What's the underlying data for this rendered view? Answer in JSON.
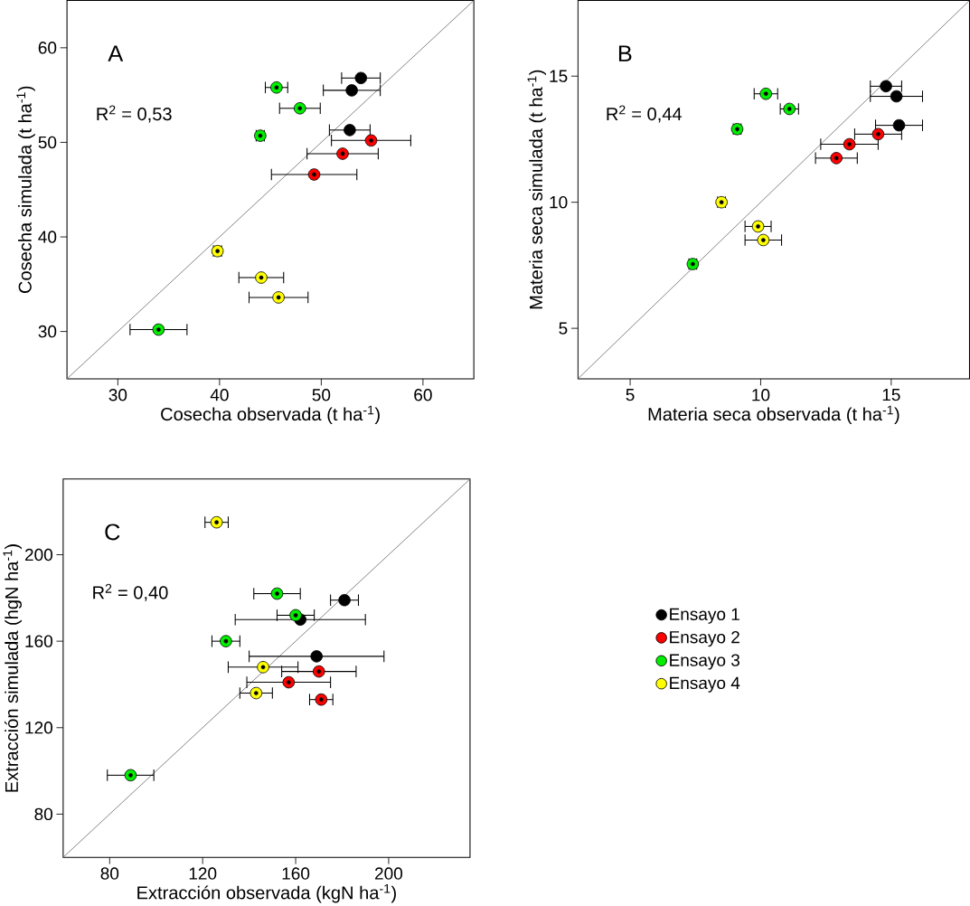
{
  "chart_data": [
    {
      "type": "scatter",
      "xlabel": "Cosecha observada (t ha$^{-1}$)",
      "ylabel": "Cosecha simulada (t ha$^{-1}$)",
      "annotations": [
        "A",
        "R$^{2}$ = 0,53"
      ],
      "xlim": [
        25,
        65
      ],
      "ylim": [
        25,
        65
      ],
      "xticks": [
        30,
        40,
        50,
        60
      ],
      "yticks": [
        30,
        40,
        50,
        60
      ],
      "marker": "circle",
      "grid": false,
      "legend": false,
      "series": [
        {
          "color": "#000000",
          "x": [
            53.9,
            53.0,
            52.8
          ],
          "values": [
            56.8,
            55.5,
            51.3
          ],
          "xerrors": [
            1.9,
            2.8,
            2.0
          ]
        },
        {
          "color": "#ff0000",
          "x": [
            54.9,
            52.1,
            49.3
          ],
          "values": [
            50.2,
            48.8,
            46.6
          ],
          "xerrors": [
            3.9,
            3.5,
            4.2
          ]
        },
        {
          "color": "#00ee00",
          "x": [
            45.6,
            47.9,
            44.0,
            34.0
          ],
          "values": [
            55.8,
            53.6,
            50.7,
            30.2
          ],
          "xerrors": [
            1.1,
            2.0,
            0.4,
            2.8
          ]
        },
        {
          "color": "#ffff00",
          "x": [
            39.8,
            44.1,
            45.8
          ],
          "values": [
            38.5,
            35.7,
            33.6
          ],
          "xerrors": [
            0.4,
            2.2,
            2.9
          ]
        },
        {
          "type": "line",
          "marker": "none",
          "color": "#808080",
          "x": [
            25,
            65
          ],
          "values": [
            25,
            65
          ]
        }
      ]
    },
    {
      "type": "scatter",
      "xlabel": "Materia seca observada (t ha$^{-1}$)",
      "ylabel": "Materia seca simulada (t ha$^{-1}$)",
      "annotations": [
        "B",
        "R$^{2}$ = 0,44"
      ],
      "xlim": [
        3,
        18
      ],
      "ylim": [
        3,
        18
      ],
      "xticks": [
        5,
        10,
        15
      ],
      "yticks": [
        5,
        10,
        15
      ],
      "marker": "circle",
      "grid": false,
      "legend": false,
      "series": [
        {
          "color": "#000000",
          "x": [
            14.8,
            15.2,
            15.3
          ],
          "values": [
            14.6,
            14.2,
            13.05
          ],
          "xerrors": [
            0.6,
            1.0,
            0.9
          ]
        },
        {
          "color": "#ff0000",
          "x": [
            14.5,
            13.4,
            12.9
          ],
          "values": [
            12.7,
            12.3,
            11.75
          ],
          "xerrors": [
            0.9,
            1.1,
            0.8
          ]
        },
        {
          "color": "#00ee00",
          "x": [
            10.2,
            11.1,
            9.1,
            7.4
          ],
          "values": [
            14.3,
            13.7,
            12.9,
            7.55
          ],
          "xerrors": [
            0.45,
            0.35,
            0.15,
            0.15
          ]
        },
        {
          "color": "#ffff00",
          "x": [
            8.5,
            9.9,
            10.1
          ],
          "values": [
            10.0,
            9.04,
            8.5
          ],
          "xerrors": [
            0.15,
            0.5,
            0.7
          ]
        },
        {
          "type": "line",
          "marker": "none",
          "color": "#808080",
          "x": [
            3,
            18
          ],
          "values": [
            3,
            18
          ]
        }
      ]
    },
    {
      "type": "scatter",
      "xlabel": "Extracción observada (kgN ha$^{-1}$)",
      "ylabel": "Extracción simulada (hgN ha$^{-1}$)",
      "annotations": [
        "C",
        "R$^{2}$ = 0,40"
      ],
      "xlim": [
        60,
        235
      ],
      "ylim": [
        60,
        235
      ],
      "xticks": [
        80,
        120,
        160,
        200
      ],
      "yticks": [
        80,
        120,
        160,
        200
      ],
      "marker": "circle",
      "grid": false,
      "legend": "right",
      "series": [
        {
          "name": "Ensayo 1",
          "color": "#000000",
          "x": [
            181,
            162,
            169
          ],
          "values": [
            179,
            170,
            153
          ],
          "xerrors": [
            6,
            28,
            29
          ]
        },
        {
          "name": "Ensayo 2",
          "color": "#ff0000",
          "x": [
            170,
            157,
            171
          ],
          "values": [
            146,
            141,
            133
          ],
          "xerrors": [
            16,
            18,
            5
          ]
        },
        {
          "name": "Ensayo 3",
          "color": "#00ee00",
          "x": [
            152,
            160,
            130,
            89
          ],
          "values": [
            182,
            172,
            160,
            98
          ],
          "xerrors": [
            10,
            8,
            6,
            10
          ]
        },
        {
          "name": "Ensayo 4",
          "color": "#ffff00",
          "x": [
            126,
            146,
            143
          ],
          "values": [
            215,
            148,
            136
          ],
          "xerrors": [
            5,
            15,
            7
          ]
        },
        {
          "type": "line",
          "marker": "none",
          "color": "#808080",
          "x": [
            60,
            235
          ],
          "values": [
            60,
            235
          ]
        }
      ]
    }
  ]
}
